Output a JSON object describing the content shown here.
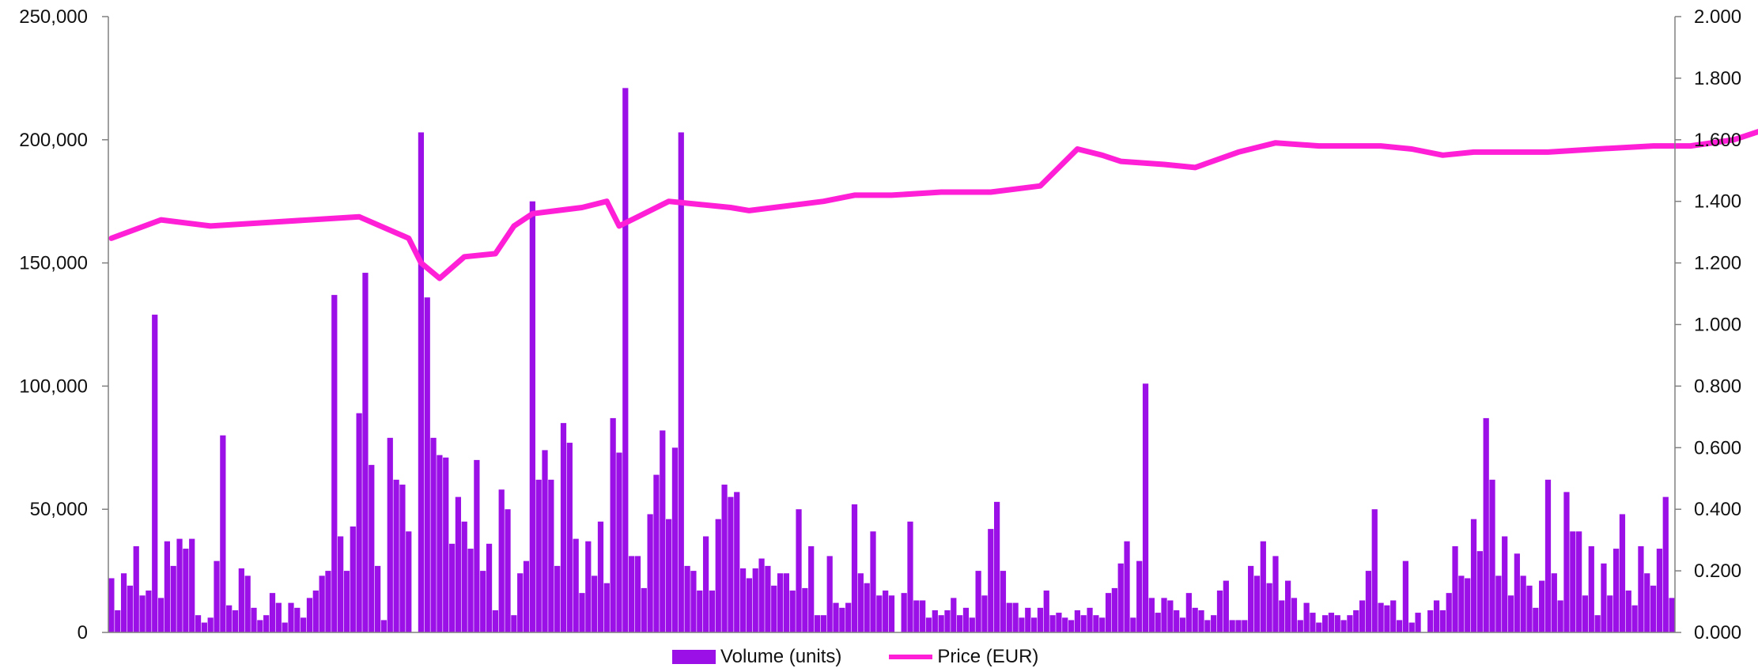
{
  "colors": {
    "volume": "#9B10E6",
    "price": "#FF1FD6",
    "axis": "#808080",
    "text": "#111111"
  },
  "chart_data": {
    "type": "bar",
    "title": "",
    "grid": false,
    "legend_position": "bottom-center",
    "y_left": {
      "label": "",
      "range": [
        0,
        250000
      ],
      "ticks": [
        "250,000",
        "200,000",
        "150,000",
        "100,000",
        "50,000",
        "0"
      ]
    },
    "y_right": {
      "label": "",
      "range": [
        0,
        2
      ],
      "ticks": [
        "2.000",
        "1.800",
        "1.600",
        "1.400",
        "1.200",
        "1.000",
        "0.800",
        "0.600",
        "0.400",
        "0.200",
        "0.000"
      ]
    },
    "series": [
      {
        "name": "Volume (units)",
        "type": "bar",
        "axis": "left",
        "values": [
          22000,
          9000,
          24000,
          19000,
          35000,
          15000,
          17000,
          129000,
          14000,
          37000,
          27000,
          38000,
          34000,
          38000,
          7000,
          4000,
          6000,
          29000,
          80000,
          11000,
          9000,
          26000,
          23000,
          10000,
          5000,
          7000,
          16000,
          12000,
          4000,
          12000,
          10000,
          6000,
          14000,
          17000,
          23000,
          25000,
          137000,
          39000,
          25000,
          43000,
          89000,
          146000,
          68000,
          27000,
          5000,
          79000,
          62000,
          60000,
          41000,
          0,
          203000,
          136000,
          79000,
          72000,
          71000,
          36000,
          55000,
          45000,
          34000,
          70000,
          25000,
          36000,
          9000,
          58000,
          50000,
          7000,
          24000,
          29000,
          175000,
          62000,
          74000,
          62000,
          27000,
          85000,
          77000,
          38000,
          16000,
          37000,
          23000,
          45000,
          20000,
          87000,
          73000,
          221000,
          31000,
          31000,
          18000,
          48000,
          64000,
          82000,
          46000,
          75000,
          203000,
          27000,
          25000,
          17000,
          39000,
          17000,
          46000,
          60000,
          55000,
          57000,
          26000,
          22000,
          26000,
          30000,
          27000,
          19000,
          24000,
          24000,
          17000,
          50000,
          18000,
          35000,
          7000,
          7000,
          31000,
          12000,
          10000,
          12000,
          52000,
          24000,
          20000,
          41000,
          15000,
          17000,
          15000,
          0,
          16000,
          45000,
          13000,
          13000,
          6000,
          9000,
          7000,
          9000,
          14000,
          7000,
          10000,
          6000,
          25000,
          15000,
          42000,
          53000,
          25000,
          12000,
          12000,
          6000,
          10000,
          6000,
          10000,
          17000,
          7000,
          8000,
          6000,
          5000,
          9000,
          7000,
          10000,
          7000,
          6000,
          16000,
          18000,
          28000,
          37000,
          6000,
          29000,
          101000,
          14000,
          8000,
          14000,
          13000,
          9000,
          6000,
          16000,
          10000,
          9000,
          5000,
          7000,
          17000,
          21000,
          5000,
          5000,
          5000,
          27000,
          23000,
          37000,
          20000,
          31000,
          13000,
          21000,
          14000,
          5000,
          12000,
          8000,
          4000,
          7000,
          8000,
          7000,
          5000,
          7000,
          9000,
          13000,
          25000,
          50000,
          12000,
          11000,
          13000,
          5000,
          29000,
          4000,
          8000,
          0,
          9000,
          13000,
          9000,
          16000,
          35000,
          23000,
          22000,
          46000,
          33000,
          87000,
          62000,
          23000,
          39000,
          15000,
          32000,
          23000,
          19000,
          10000,
          21000,
          62000,
          24000,
          13000,
          57000,
          41000,
          41000,
          15000,
          35000,
          7000,
          28000,
          15000,
          34000,
          48000,
          17000,
          11000,
          35000,
          24000,
          19000,
          34000,
          55000,
          14000
        ]
      },
      {
        "name": "Price (EUR)",
        "type": "line",
        "axis": "right",
        "x_knots": [
          0,
          8,
          16,
          24,
          32,
          40,
          48,
          50,
          53,
          57,
          62,
          65,
          68,
          72,
          76,
          80,
          82,
          85,
          90,
          95,
          100,
          103,
          107,
          115,
          120,
          126,
          134,
          142,
          150,
          156,
          158,
          160,
          163,
          170,
          175,
          182,
          188,
          195,
          205,
          210,
          215,
          220,
          232,
          240,
          249,
          255,
          262,
          268,
          272,
          275,
          280,
          285,
          290,
          295,
          300,
          305,
          310,
          320,
          330,
          340,
          350,
          356
        ],
        "values": [
          1.28,
          1.34,
          1.32,
          1.33,
          1.34,
          1.35,
          1.28,
          1.2,
          1.15,
          1.22,
          1.23,
          1.32,
          1.36,
          1.37,
          1.38,
          1.4,
          1.32,
          1.35,
          1.4,
          1.39,
          1.38,
          1.37,
          1.38,
          1.4,
          1.42,
          1.42,
          1.43,
          1.43,
          1.45,
          1.57,
          1.56,
          1.55,
          1.53,
          1.52,
          1.51,
          1.56,
          1.59,
          1.58,
          1.58,
          1.57,
          1.55,
          1.56,
          1.56,
          1.57,
          1.58,
          1.58,
          1.6,
          1.64,
          1.73,
          1.71,
          1.7,
          1.72,
          1.76,
          1.8,
          1.8,
          1.82,
          1.83,
          1.82,
          1.83,
          1.8,
          1.81,
          1.82
        ]
      }
    ]
  },
  "legend": {
    "volume_label": "Volume (units)",
    "price_label": "Price (EUR)"
  }
}
